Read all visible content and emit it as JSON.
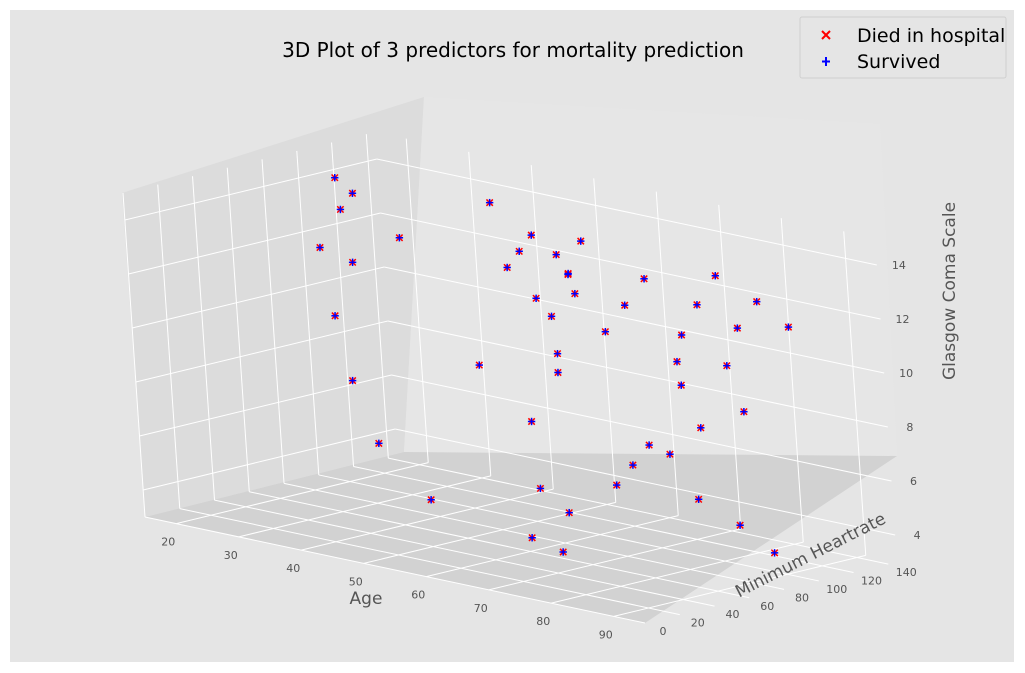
{
  "chart_data": {
    "type": "scatter",
    "projection": "3d",
    "title": "3D Plot of 3 predictors for mortality prediction",
    "xlabel": "Age",
    "ylabel": "Minimum Heartrate",
    "zlabel": "Glasgow Coma Scale",
    "xlim": [
      15,
      95
    ],
    "ylim": [
      0,
      145
    ],
    "zlim": [
      3,
      15
    ],
    "xticks": [
      "20",
      "30",
      "40",
      "50",
      "60",
      "70",
      "80",
      "90"
    ],
    "yticks": [
      "0",
      "20",
      "40",
      "60",
      "80",
      "100",
      "120",
      "140"
    ],
    "zticks": [
      "4",
      "6",
      "8",
      "10",
      "12",
      "14"
    ],
    "grid": true,
    "legend_position": "top-right",
    "series": [
      {
        "name": "Died in hospital",
        "marker": "x",
        "color": "#ff0000",
        "points": [
          [
            84,
            80,
            13
          ],
          [
            85,
            88,
            14
          ],
          [
            86,
            95,
            12
          ],
          [
            83,
            70,
            11
          ],
          [
            88,
            100,
            13
          ],
          [
            90,
            110,
            12
          ],
          [
            80,
            65,
            14
          ],
          [
            82,
            75,
            10
          ],
          [
            87,
            92,
            9
          ],
          [
            78,
            60,
            13
          ],
          [
            76,
            55,
            12
          ],
          [
            72,
            50,
            14
          ],
          [
            70,
            48,
            11
          ],
          [
            68,
            45,
            13
          ],
          [
            66,
            60,
            12
          ],
          [
            64,
            72,
            14
          ],
          [
            62,
            85,
            13
          ],
          [
            60,
            95,
            12
          ],
          [
            74,
            105,
            11
          ],
          [
            79,
            112,
            10
          ],
          [
            81,
            58,
            8
          ],
          [
            77,
            62,
            7
          ],
          [
            73,
            66,
            6
          ],
          [
            69,
            52,
            5
          ],
          [
            65,
            44,
            4
          ],
          [
            85,
            70,
            6
          ],
          [
            88,
            82,
            5
          ],
          [
            91,
            90,
            4
          ],
          [
            89,
            60,
            9
          ],
          [
            86,
            52,
            8
          ],
          [
            55,
            90,
            14
          ],
          [
            50,
            100,
            13
          ],
          [
            45,
            110,
            12
          ],
          [
            40,
            120,
            14
          ],
          [
            35,
            85,
            13
          ],
          [
            30,
            75,
            12
          ],
          [
            25,
            95,
            14
          ],
          [
            20,
            105,
            13
          ],
          [
            18,
            110,
            14
          ],
          [
            22,
            85,
            12
          ],
          [
            28,
            70,
            10
          ],
          [
            33,
            60,
            8
          ],
          [
            38,
            55,
            6
          ],
          [
            43,
            65,
            4
          ],
          [
            48,
            80,
            9
          ],
          [
            53,
            90,
            7
          ],
          [
            58,
            75,
            5
          ],
          [
            63,
            68,
            3
          ],
          [
            67,
            58,
            10
          ],
          [
            71,
            62,
            15
          ]
        ]
      },
      {
        "name": "Survived",
        "marker": "+",
        "color": "#0000ff",
        "points": [
          [
            84,
            80,
            13
          ],
          [
            85,
            88,
            14
          ],
          [
            86,
            95,
            12
          ],
          [
            83,
            70,
            11
          ],
          [
            88,
            100,
            13
          ],
          [
            90,
            110,
            12
          ],
          [
            80,
            65,
            14
          ],
          [
            82,
            75,
            10
          ],
          [
            87,
            92,
            9
          ],
          [
            78,
            60,
            13
          ],
          [
            76,
            55,
            12
          ],
          [
            72,
            50,
            14
          ],
          [
            70,
            48,
            11
          ],
          [
            68,
            45,
            13
          ],
          [
            66,
            60,
            12
          ],
          [
            64,
            72,
            14
          ],
          [
            62,
            85,
            13
          ],
          [
            60,
            95,
            12
          ],
          [
            74,
            105,
            11
          ],
          [
            79,
            112,
            10
          ],
          [
            81,
            58,
            8
          ],
          [
            77,
            62,
            7
          ],
          [
            73,
            66,
            6
          ],
          [
            69,
            52,
            5
          ],
          [
            65,
            44,
            4
          ],
          [
            85,
            70,
            6
          ],
          [
            88,
            82,
            5
          ],
          [
            91,
            90,
            4
          ],
          [
            89,
            60,
            9
          ],
          [
            86,
            52,
            8
          ],
          [
            55,
            90,
            14
          ],
          [
            50,
            100,
            13
          ],
          [
            45,
            110,
            12
          ],
          [
            40,
            120,
            14
          ],
          [
            35,
            85,
            13
          ],
          [
            30,
            75,
            12
          ],
          [
            25,
            95,
            14
          ],
          [
            20,
            105,
            13
          ],
          [
            18,
            110,
            14
          ],
          [
            22,
            85,
            12
          ],
          [
            28,
            70,
            10
          ],
          [
            33,
            60,
            8
          ],
          [
            38,
            55,
            6
          ],
          [
            43,
            65,
            4
          ],
          [
            48,
            80,
            9
          ],
          [
            53,
            90,
            7
          ],
          [
            58,
            75,
            5
          ],
          [
            63,
            68,
            3
          ],
          [
            67,
            58,
            10
          ],
          [
            71,
            62,
            15
          ]
        ]
      }
    ]
  }
}
